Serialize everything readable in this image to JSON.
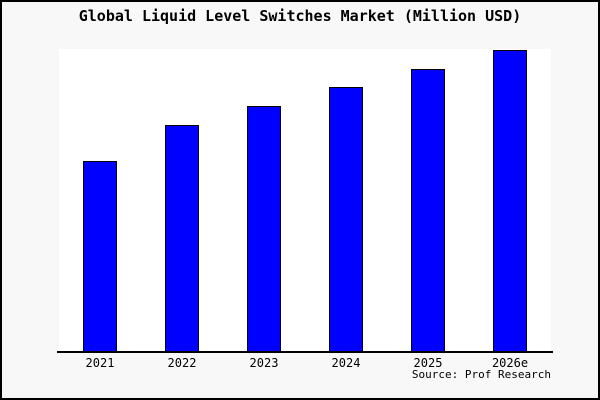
{
  "figure": {
    "title": "Global Liquid Level Switches Market (Million USD)",
    "source_note": "Source: Prof Research"
  },
  "chart_data": {
    "type": "bar",
    "title": "Global Liquid Level Switches Market (Million USD)",
    "categories": [
      "2021",
      "2022",
      "2023",
      "2024",
      "2025",
      "2026e"
    ],
    "values": [
      190,
      226,
      245,
      264,
      282,
      301
    ],
    "values_note": "no y-axis ticks or data labels shown; values are relative units estimated from bar heights",
    "xlabel": "",
    "ylabel": "",
    "ylim": [
      0,
      302
    ],
    "grid": false,
    "legend": null,
    "source": "Source: Prof Research"
  },
  "colors": {
    "bar_fill": "#0000ff",
    "bar_edge": "#000000",
    "plot_background": "#ffffff",
    "figure_background": "#f8f8f8",
    "figure_border": "#000000",
    "text": "#000000"
  }
}
